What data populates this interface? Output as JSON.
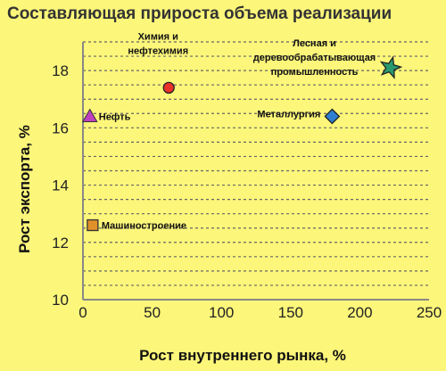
{
  "chart_data": {
    "type": "scatter",
    "title": "Составляющая прироста объема реализации",
    "xlabel": "Рост внутреннего рынка, %",
    "ylabel": "Рост экспорта, %",
    "xlim": [
      0,
      250
    ],
    "ylim": [
      10,
      19
    ],
    "x_ticks": [
      0,
      50,
      100,
      150,
      200,
      250
    ],
    "y_ticks": [
      10,
      12,
      14,
      16,
      18
    ],
    "grid_y": [
      10.5,
      11,
      11.5,
      12,
      12.5,
      13,
      13.5,
      14,
      14.5,
      15,
      15.5,
      16,
      16.5,
      17,
      17.5,
      18,
      18.5,
      19
    ],
    "grid": true,
    "points": [
      {
        "label": [
          "Химия и",
          "нефтехимия"
        ],
        "x": 62,
        "y": 17.4,
        "marker": "circle",
        "color": "#e8322a"
      },
      {
        "label": [
          "Лесная и",
          "деревообрабатывающая",
          "промышленность"
        ],
        "x": 222,
        "y": 18.1,
        "marker": "star",
        "color": "#2a9a6e"
      },
      {
        "label": [
          "Нефть"
        ],
        "x": 5,
        "y": 16.4,
        "marker": "triangle",
        "color": "#c040c0"
      },
      {
        "label": [
          "Металлургия"
        ],
        "x": 180,
        "y": 16.4,
        "marker": "diamond",
        "color": "#2f7fd0"
      },
      {
        "label": [
          "Машиностроение"
        ],
        "x": 7,
        "y": 12.6,
        "marker": "square",
        "color": "#e0902a"
      }
    ],
    "colors": {
      "background": "#fcf67a",
      "grid": "#666666"
    }
  }
}
